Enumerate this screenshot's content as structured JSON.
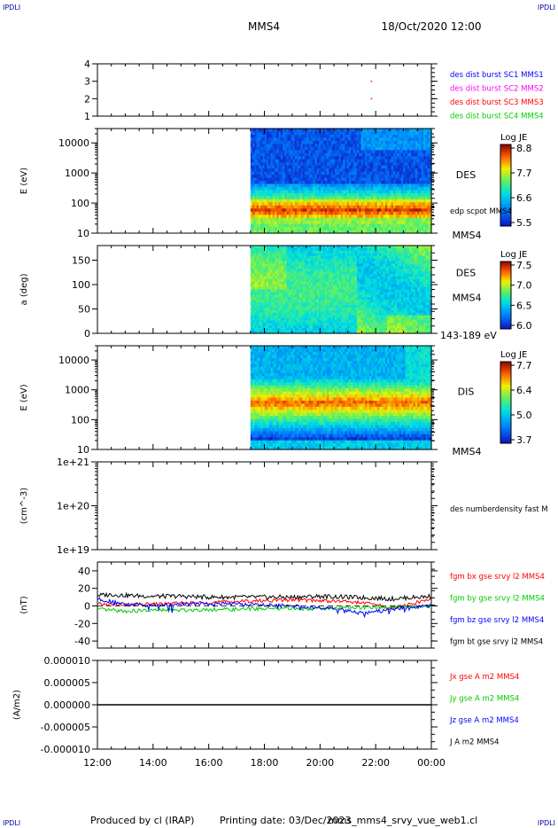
{
  "header": {
    "corner_tl": "IPDLI",
    "corner_tr": "IPDLI",
    "corner_bl": "IPDLI",
    "corner_br": "IPDLI",
    "spacecraft": "MMS4",
    "datetime": "18/Oct/2020 12:00"
  },
  "footer": {
    "produced_by": "Produced by cl (IRAP)",
    "printing_date": "Printing date: 03/Dec/2023",
    "filename": "mms_mms4_srvy_vue_web1.cl"
  },
  "time_axis": {
    "ticks": [
      "12:00",
      "14:00",
      "16:00",
      "18:00",
      "20:00",
      "22:00",
      "00:00"
    ]
  },
  "chart_data": [
    {
      "type": "scatter",
      "panel": "burst",
      "yticks": [
        "1",
        "2",
        "3",
        "4"
      ],
      "ylim": [
        1,
        4
      ],
      "xlim": [
        12,
        24
      ],
      "points": [
        {
          "x": 21.85,
          "y": 3.0
        },
        {
          "x": 21.85,
          "y": 2.0
        }
      ],
      "legend": [
        {
          "text": "des dist burst SC1 MMS1",
          "color": "#0000ff"
        },
        {
          "text": "des dist burst SC2 MMS2",
          "color": "#ff00ff"
        },
        {
          "text": "des dist burst SC3 MMS3",
          "color": "#ff0000"
        },
        {
          "text": "des dist burst SC4 MMS4",
          "color": "#00cc00"
        }
      ]
    },
    {
      "type": "heatmap",
      "panel": "des-energy",
      "ylabel": "E (eV)",
      "yticks": [
        "10",
        "100",
        "1000",
        "10000"
      ],
      "ylog": true,
      "ylim": [
        10,
        30000
      ],
      "xlim": [
        12,
        24
      ],
      "data_start": 17.5,
      "label": "DES",
      "sub_label": "MMS4",
      "overlay_label": "edp scpot MMS4",
      "colorbar": {
        "title": "Log JE",
        "ticks": [
          "8.8",
          "7.7",
          "6.6",
          "5.5"
        ]
      }
    },
    {
      "type": "heatmap",
      "panel": "des-pitch",
      "ylabel": "a (deg)",
      "yticks": [
        "0",
        "50",
        "100",
        "150"
      ],
      "ylim": [
        0,
        180
      ],
      "xlim": [
        12,
        24
      ],
      "data_start": 17.5,
      "label": "DES",
      "sub_label": "MMS4",
      "energy_range": "143-189 eV",
      "colorbar": {
        "title": "Log JE",
        "ticks": [
          "7.5",
          "7.0",
          "6.5",
          "6.0"
        ]
      }
    },
    {
      "type": "heatmap",
      "panel": "dis-energy",
      "ylabel": "E (eV)",
      "yticks": [
        "10",
        "100",
        "1000",
        "10000"
      ],
      "ylog": true,
      "ylim": [
        10,
        30000
      ],
      "xlim": [
        12,
        24
      ],
      "data_start": 17.5,
      "label": "DIS",
      "sub_label": "MMS4",
      "colorbar": {
        "title": "Log JE",
        "ticks": [
          "7.7",
          "6.4",
          "5.0",
          "3.7"
        ]
      }
    },
    {
      "type": "line",
      "panel": "density",
      "ylabel": "(cm^-3)",
      "yticks": [
        "1e+19",
        "1e+20",
        "1e+21"
      ],
      "ylog": true,
      "ylim": [
        1e+19,
        1e+21
      ],
      "legend": [
        {
          "text": "des numberdensity fast M",
          "color": "#000000"
        }
      ],
      "series": []
    },
    {
      "type": "line",
      "panel": "fgm",
      "ylabel": "(nT)",
      "yticks": [
        "-40",
        "-20",
        "0",
        "20",
        "40"
      ],
      "ylim": [
        -48,
        50
      ],
      "xlim": [
        12,
        24
      ],
      "legend": [
        {
          "text": "fgm bx gse srvy l2 MMS4",
          "color": "#ff0000"
        },
        {
          "text": "fgm by gse srvy l2 MMS4",
          "color": "#00cc00"
        },
        {
          "text": "fgm bz gse srvy l2 MMS4",
          "color": "#0000ff"
        },
        {
          "text": "fgm bt gse srvy l2 MMS4",
          "color": "#000000"
        }
      ],
      "series": [
        {
          "name": "fgm bt gse srvy l2 MMS4",
          "color": "#000000",
          "x": [
            12,
            12.5,
            13,
            14,
            15,
            16,
            17,
            18,
            19,
            20,
            21,
            22,
            22.5,
            23,
            23.5,
            24
          ],
          "y": [
            12,
            13,
            12,
            11,
            11,
            10,
            10,
            10,
            10,
            11,
            10,
            9,
            8,
            9,
            10,
            11
          ]
        },
        {
          "name": "fgm bx gse srvy l2 MMS4",
          "color": "#ff0000",
          "x": [
            12,
            13,
            14,
            15,
            16,
            17,
            18,
            19,
            20,
            21,
            22,
            22.5,
            23,
            23.5,
            24
          ],
          "y": [
            2,
            1,
            2,
            3,
            4,
            5,
            6,
            7,
            6,
            5,
            2,
            -3,
            0,
            4,
            8
          ]
        },
        {
          "name": "fgm by gse srvy l2 MMS4",
          "color": "#00cc00",
          "x": [
            12,
            13,
            14,
            15,
            16,
            17,
            18,
            19,
            20,
            21,
            22,
            23,
            24
          ],
          "y": [
            -4,
            -6,
            -5,
            -5,
            -4,
            -4,
            -3,
            -3,
            -3,
            -2,
            -2,
            -1,
            0
          ]
        },
        {
          "name": "fgm bz gse srvy l2 MMS4",
          "color": "#0000ff",
          "x": [
            12,
            12.5,
            13,
            14,
            15,
            16,
            17,
            18,
            19,
            20,
            21,
            21.5,
            22,
            22.5,
            23,
            24
          ],
          "y": [
            8,
            5,
            2,
            1,
            2,
            3,
            2,
            1,
            0,
            -2,
            -5,
            -8,
            -6,
            -4,
            -2,
            0
          ]
        }
      ]
    },
    {
      "type": "line",
      "panel": "current",
      "ylabel": "(A/m2)",
      "yticks": [
        "-0.000010",
        "-0.000005",
        "0.000000",
        "0.000005",
        "0.000010"
      ],
      "ylim": [
        -1e-05,
        1e-05
      ],
      "xlim": [
        12,
        24
      ],
      "legend": [
        {
          "text": "Jx gse A m2 MMS4",
          "color": "#ff0000"
        },
        {
          "text": "Jy gse A m2 MMS4",
          "color": "#00cc00"
        },
        {
          "text": "Jz gse A m2 MMS4",
          "color": "#0000ff"
        },
        {
          "text": "J A m2 MMS4",
          "color": "#000000"
        }
      ],
      "series": [
        {
          "name": "J A m2 MMS4",
          "color": "#000000",
          "x": [
            12,
            24
          ],
          "y": [
            0,
            0
          ]
        }
      ]
    }
  ]
}
